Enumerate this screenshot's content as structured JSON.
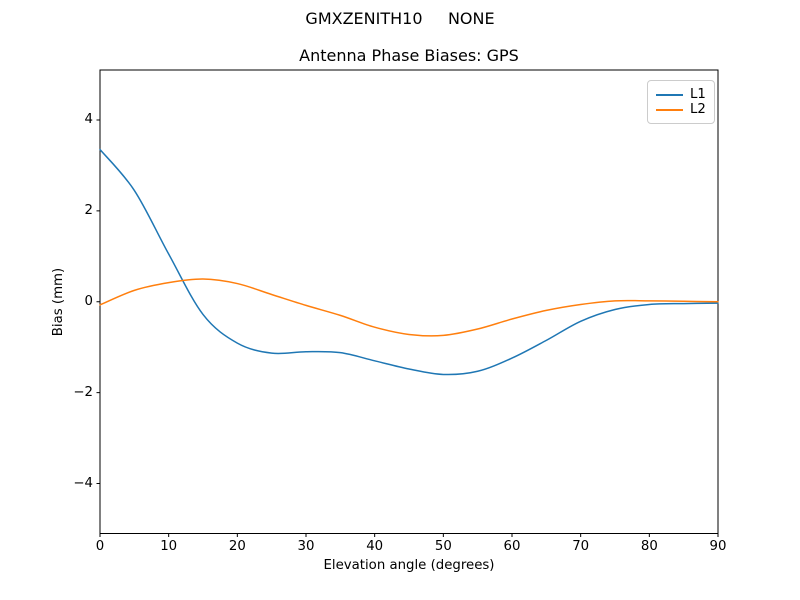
{
  "figure": {
    "suptitle": "GMXZENITH10     NONE",
    "background_color": "#ffffff",
    "spine_color": "#000000",
    "tick_color": "#000000",
    "legend_border_color": "#cccccc"
  },
  "chart_data": {
    "type": "line",
    "title": "Antenna Phase Biases: GPS",
    "xlabel": "Elevation angle (degrees)",
    "ylabel": "Bias (mm)",
    "xlim": [
      0,
      90
    ],
    "ylim": [
      -5.1,
      5.1
    ],
    "grid": false,
    "legend_position": "upper right",
    "xticks": {
      "values": [
        0,
        10,
        20,
        30,
        40,
        50,
        60,
        70,
        80,
        90
      ],
      "labels": [
        "0",
        "10",
        "20",
        "30",
        "40",
        "50",
        "60",
        "70",
        "80",
        "90"
      ]
    },
    "yticks": {
      "values": [
        -4,
        -2,
        0,
        2,
        4
      ],
      "labels": [
        "−4",
        "−2",
        "0",
        "2",
        "4"
      ]
    },
    "x": [
      0,
      5,
      10,
      15,
      20,
      25,
      30,
      35,
      40,
      45,
      50,
      55,
      60,
      65,
      70,
      75,
      80,
      85,
      90
    ],
    "series": [
      {
        "name": "L1",
        "color": "#1f77b4",
        "values": [
          3.35,
          2.45,
          1.05,
          -0.28,
          -0.91,
          -1.13,
          -1.1,
          -1.12,
          -1.3,
          -1.48,
          -1.6,
          -1.53,
          -1.24,
          -0.85,
          -0.43,
          -0.17,
          -0.06,
          -0.04,
          -0.03
        ]
      },
      {
        "name": "L2",
        "color": "#ff7f0e",
        "values": [
          -0.07,
          0.25,
          0.42,
          0.5,
          0.4,
          0.16,
          -0.08,
          -0.3,
          -0.56,
          -0.72,
          -0.74,
          -0.6,
          -0.38,
          -0.19,
          -0.06,
          0.02,
          0.02,
          0.01,
          0.0
        ]
      }
    ]
  }
}
